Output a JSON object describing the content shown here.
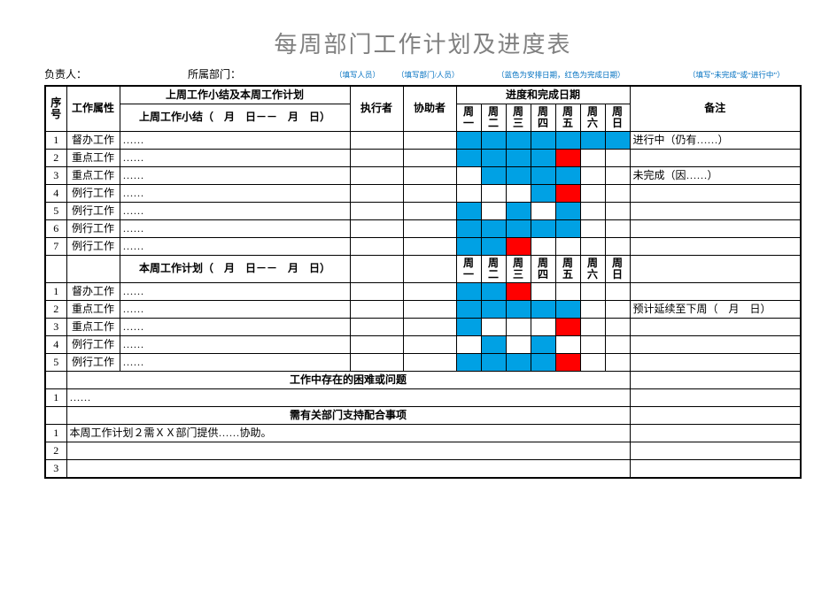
{
  "title": "每周部门工作计划及进度表",
  "meta": {
    "owner_label": "负责人：",
    "dept_label": "所属部门：",
    "hint_exec": "（填写人员）",
    "hint_assist": "（填写部门/人员）",
    "hint_color": "（蓝色为安排日期，红色为完成日期）",
    "hint_note": "（填写“未完成”或“进行中”）"
  },
  "headers": {
    "idx": "序号",
    "attr": "工作属性",
    "group_top": "上周工作小结及本周工作计划",
    "last_week": "上周工作小结（　月　日－－　月　日）",
    "this_week": "本周工作计划（　月　日－－　月　日）",
    "exec": "执行者",
    "assist": "协助者",
    "progress": "进度和完成日期",
    "note": "备注",
    "days": [
      "周一",
      "周二",
      "周三",
      "周四",
      "周五",
      "周六",
      "周日"
    ],
    "issues": "工作中存在的困难或问题",
    "support": "需有关部门支持配合事项"
  },
  "colors": {
    "blue": "#00a1e4",
    "red": "#ff0000",
    "title_gray": "#808080",
    "hint_blue": "#0070c0",
    "border": "#000000",
    "bg": "#ffffff"
  },
  "last_week_rows": [
    {
      "idx": "1",
      "attr": "督办工作",
      "desc": "……",
      "days": [
        "blue",
        "blue",
        "blue",
        "blue",
        "blue",
        "blue",
        "blue"
      ],
      "note": "进行中（仍有……）"
    },
    {
      "idx": "2",
      "attr": "重点工作",
      "desc": "……",
      "days": [
        "blue",
        "blue",
        "blue",
        "blue",
        "red",
        "",
        ""
      ],
      "note": ""
    },
    {
      "idx": "3",
      "attr": "重点工作",
      "desc": "……",
      "days": [
        "",
        "blue",
        "blue",
        "blue",
        "blue",
        "",
        ""
      ],
      "note": "未完成（因……）"
    },
    {
      "idx": "4",
      "attr": "例行工作",
      "desc": "……",
      "days": [
        "",
        "",
        "",
        "blue",
        "red",
        "",
        ""
      ],
      "note": ""
    },
    {
      "idx": "5",
      "attr": "例行工作",
      "desc": "……",
      "days": [
        "blue",
        "",
        "blue",
        "",
        "blue",
        "",
        ""
      ],
      "note": ""
    },
    {
      "idx": "6",
      "attr": "例行工作",
      "desc": "……",
      "days": [
        "blue",
        "blue",
        "blue",
        "blue",
        "blue",
        "",
        ""
      ],
      "note": ""
    },
    {
      "idx": "7",
      "attr": "例行工作",
      "desc": "……",
      "days": [
        "blue",
        "blue",
        "red",
        "",
        "",
        "",
        ""
      ],
      "note": ""
    }
  ],
  "this_week_rows": [
    {
      "idx": "1",
      "attr": "督办工作",
      "desc": "……",
      "days": [
        "blue",
        "blue",
        "red",
        "",
        "",
        "",
        ""
      ],
      "note": ""
    },
    {
      "idx": "2",
      "attr": "重点工作",
      "desc": "……",
      "days": [
        "blue",
        "blue",
        "blue",
        "blue",
        "blue",
        "",
        ""
      ],
      "note": "预计延续至下周（　月　日）"
    },
    {
      "idx": "3",
      "attr": "重点工作",
      "desc": "……",
      "days": [
        "blue",
        "",
        "",
        "",
        "red",
        "",
        ""
      ],
      "note": ""
    },
    {
      "idx": "4",
      "attr": "例行工作",
      "desc": "……",
      "days": [
        "",
        "blue",
        "",
        "blue",
        "",
        "",
        ""
      ],
      "note": ""
    },
    {
      "idx": "5",
      "attr": "例行工作",
      "desc": "……",
      "days": [
        "blue",
        "blue",
        "blue",
        "blue",
        "red",
        "",
        ""
      ],
      "note": ""
    }
  ],
  "issues_rows": [
    {
      "idx": "1",
      "text": "……"
    }
  ],
  "support_rows": [
    {
      "idx": "1",
      "text": "本周工作计划２需ＸＸ部门提供……协助。"
    },
    {
      "idx": "2",
      "text": ""
    },
    {
      "idx": "3",
      "text": ""
    }
  ]
}
